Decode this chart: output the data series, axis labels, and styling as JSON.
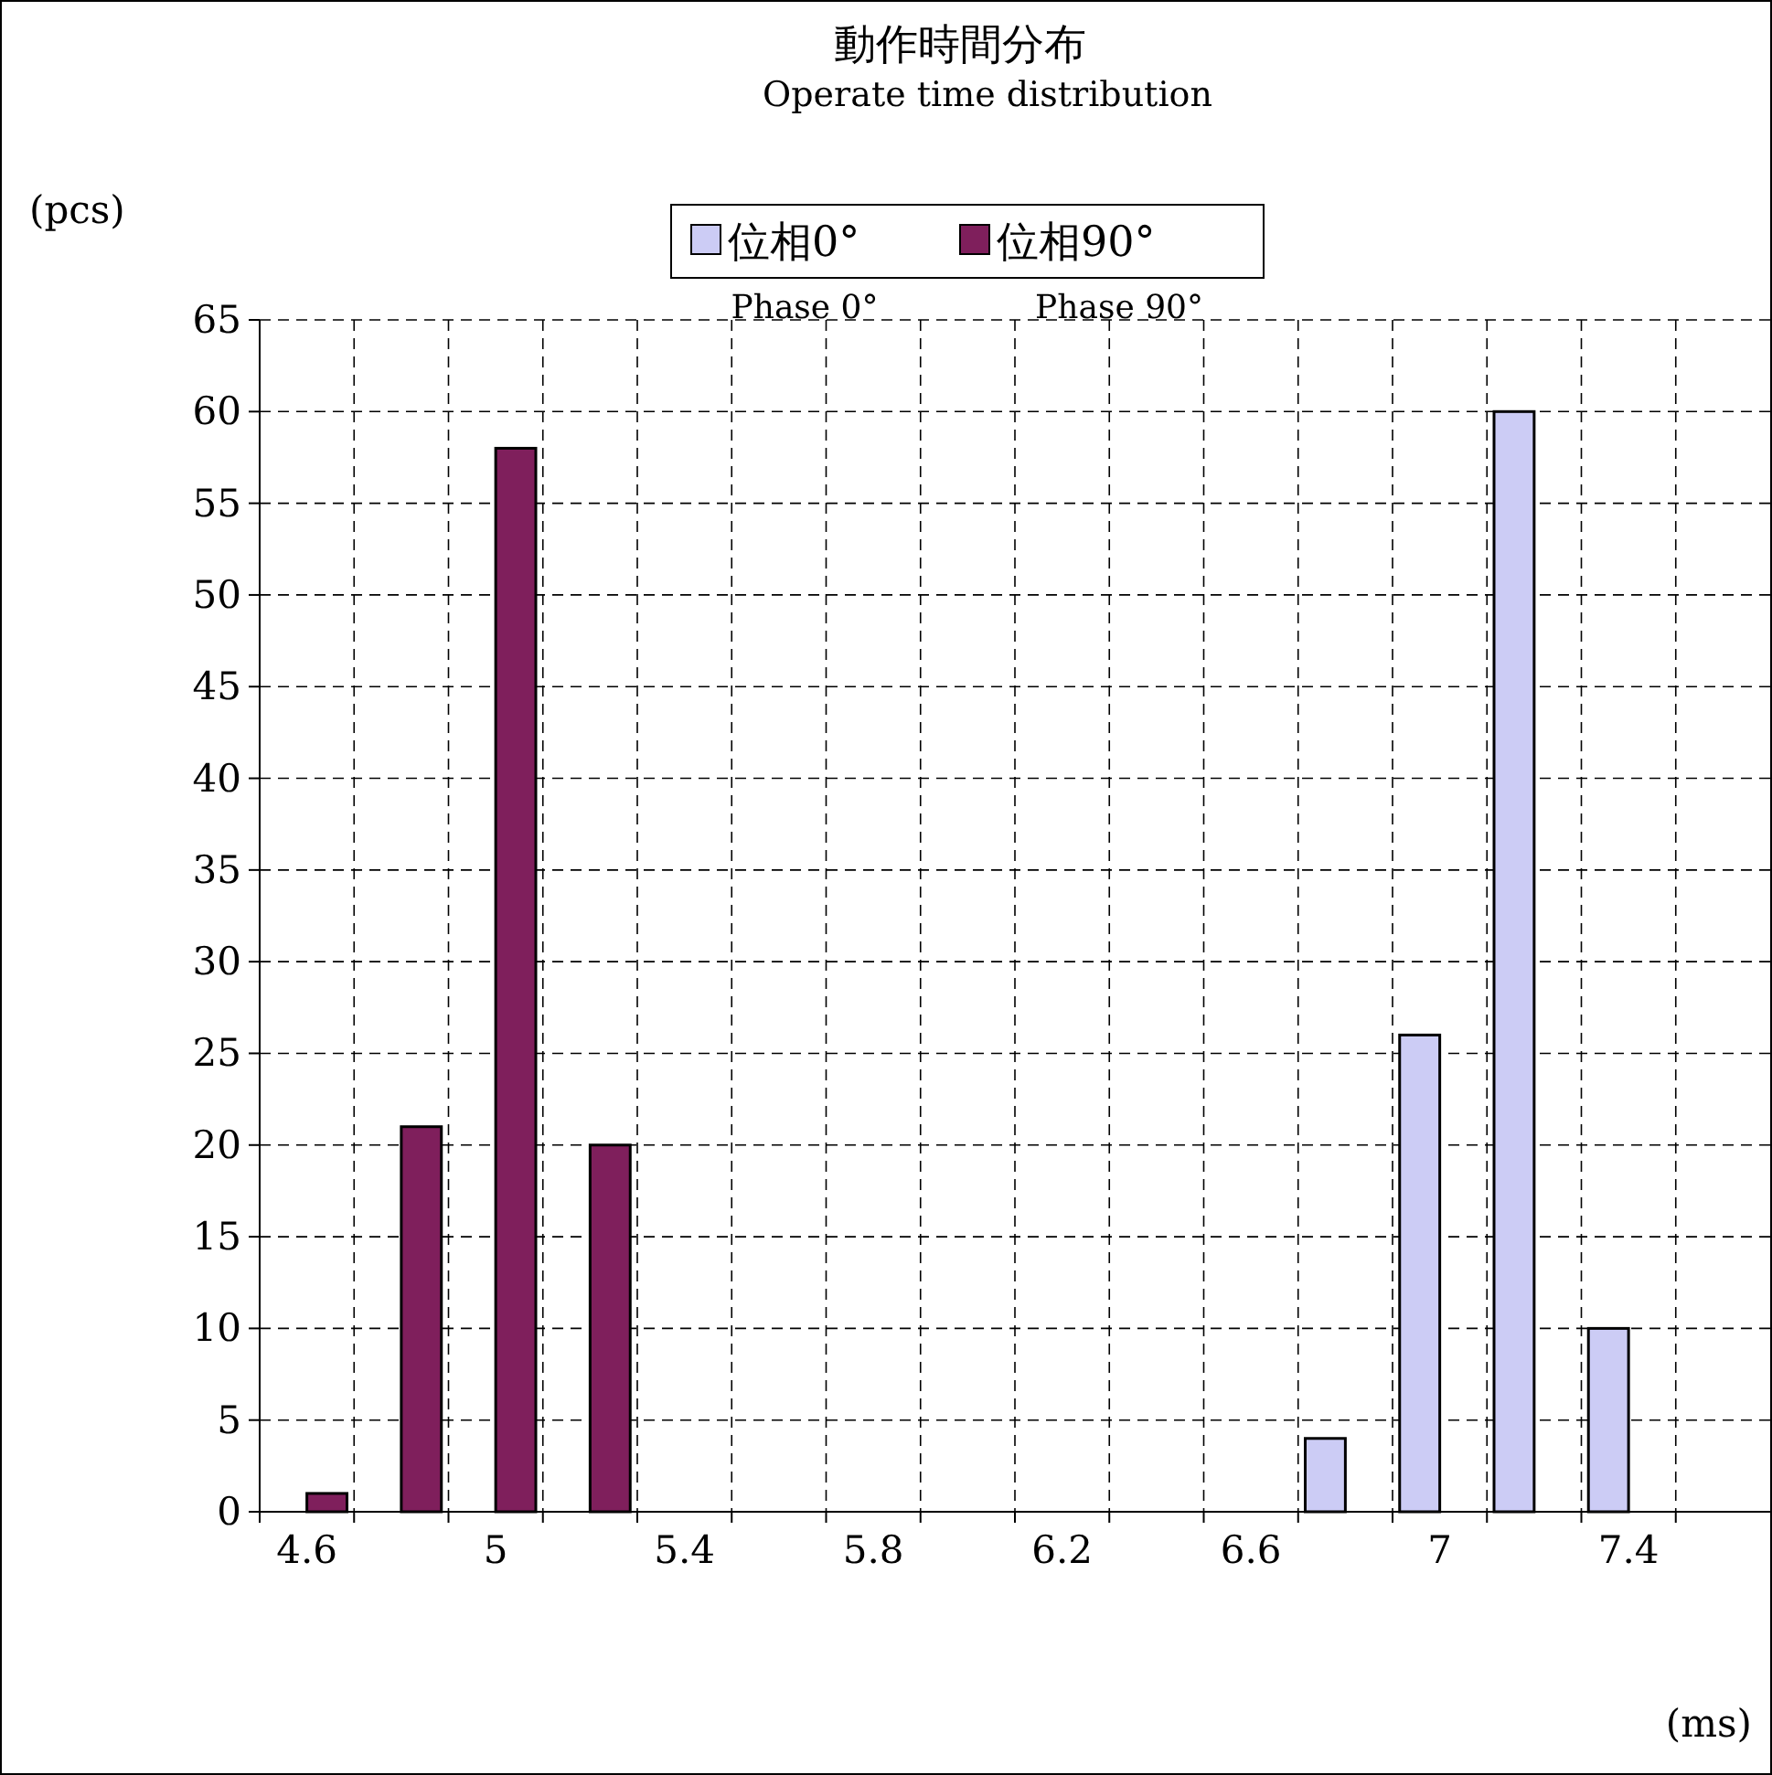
{
  "chart_data": {
    "type": "bar",
    "title": "動作時間分布",
    "subtitle": "Operate time distribution",
    "xlabel": "(ms)",
    "ylabel": "(pcs)",
    "categories": [
      "4.6",
      null,
      "5",
      null,
      "5.4",
      null,
      "5.8",
      null,
      "6.2",
      null,
      "6.6",
      null,
      "7",
      null,
      "7.4",
      null
    ],
    "series": [
      {
        "name": "位相0°",
        "color": "#ccccf5",
        "values": [
          0,
          0,
          0,
          0,
          0,
          0,
          0,
          0,
          0,
          0,
          0,
          4,
          26,
          60,
          10,
          0
        ]
      },
      {
        "name": "位相90°",
        "color": "#7f1f5c",
        "values": [
          1,
          21,
          58,
          20,
          0,
          0,
          0,
          0,
          0,
          0,
          0,
          0,
          0,
          0,
          0,
          0
        ]
      }
    ],
    "annotations": [
      "Phase 0°",
      "Phase 90°"
    ],
    "ylim": [
      0,
      65
    ],
    "yticks": [
      0,
      5,
      10,
      15,
      20,
      25,
      30,
      35,
      40,
      45,
      50,
      55,
      60,
      65
    ],
    "grid": true,
    "legend": "top"
  }
}
